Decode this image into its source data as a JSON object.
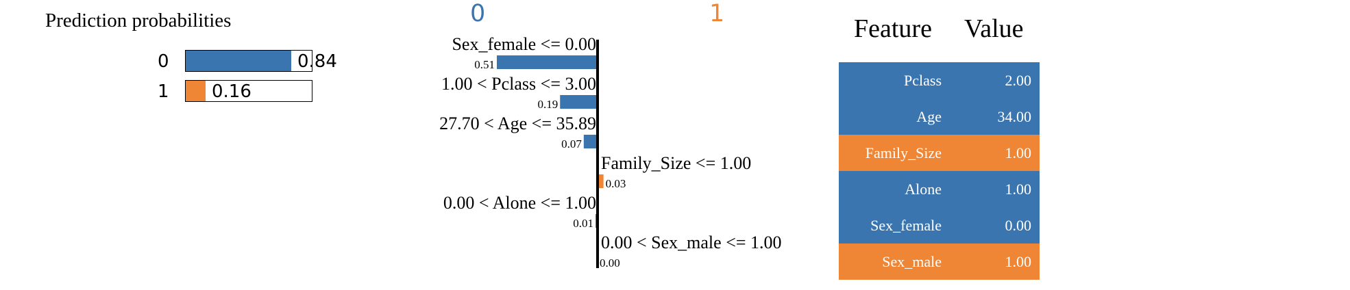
{
  "colors": {
    "class_0": "#3b75af",
    "class_1": "#ef8636"
  },
  "prediction": {
    "title": "Prediction probabilities",
    "rows": [
      {
        "label": "0",
        "value": 0.84,
        "text": "0.84",
        "color": "#3b75af"
      },
      {
        "label": "1",
        "value": 0.16,
        "text": "0.16",
        "color": "#ef8636"
      }
    ]
  },
  "chart_data": {
    "type": "bar",
    "orientation": "horizontal",
    "class_labels": [
      "0",
      "1"
    ],
    "bars": [
      {
        "label": "Sex_female <= 0.00",
        "value": 0.51,
        "text": "0.51",
        "class": "0"
      },
      {
        "label": "1.00 < Pclass <= 3.00",
        "value": 0.19,
        "text": "0.19",
        "class": "0"
      },
      {
        "label": "27.70 < Age <= 35.89",
        "value": 0.07,
        "text": "0.07",
        "class": "0"
      },
      {
        "label": "Family_Size <= 1.00",
        "value": 0.03,
        "text": "0.03",
        "class": "1"
      },
      {
        "label": "0.00 < Alone <= 1.00",
        "value": 0.01,
        "text": "0.01",
        "class": "0"
      },
      {
        "label": "0.00 < Sex_male <= 1.00",
        "value": 0.0,
        "text": "0.00",
        "class": "1"
      }
    ]
  },
  "feature_table": {
    "headers": {
      "feature": "Feature",
      "value": "Value"
    },
    "rows": [
      {
        "feature": "Pclass",
        "value": "2.00",
        "class": "0"
      },
      {
        "feature": "Age",
        "value": "34.00",
        "class": "0"
      },
      {
        "feature": "Family_Size",
        "value": "1.00",
        "class": "1"
      },
      {
        "feature": "Alone",
        "value": "1.00",
        "class": "0"
      },
      {
        "feature": "Sex_female",
        "value": "0.00",
        "class": "0"
      },
      {
        "feature": "Sex_male",
        "value": "1.00",
        "class": "1"
      }
    ]
  }
}
